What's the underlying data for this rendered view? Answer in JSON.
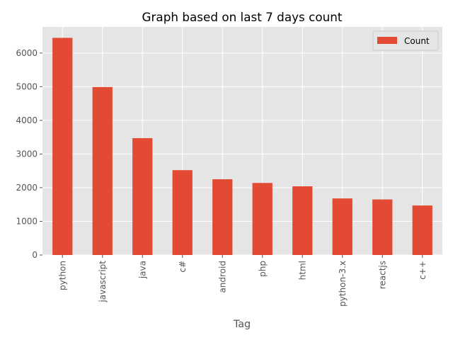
{
  "chart_data": {
    "type": "bar",
    "title": "Graph based on last 7 days count",
    "xlabel": "Tag",
    "ylabel": "",
    "categories": [
      "python",
      "javascript",
      "java",
      "c#",
      "android",
      "php",
      "html",
      "python-3.x",
      "reactjs",
      "c++"
    ],
    "series": [
      {
        "name": "Count",
        "values": [
          6450,
          4990,
          3470,
          2520,
          2250,
          2140,
          2040,
          1680,
          1650,
          1470
        ],
        "color": "#E24A33"
      }
    ],
    "ylim": [
      0,
      6775
    ],
    "yticks": [
      "0",
      "1000",
      "2000",
      "3000",
      "4000",
      "5000",
      "6000"
    ],
    "legend_position": "top-right",
    "grid": true,
    "style": "ggplot",
    "background_color": "#E5E5E5",
    "grid_color": "#FFFFFF"
  }
}
